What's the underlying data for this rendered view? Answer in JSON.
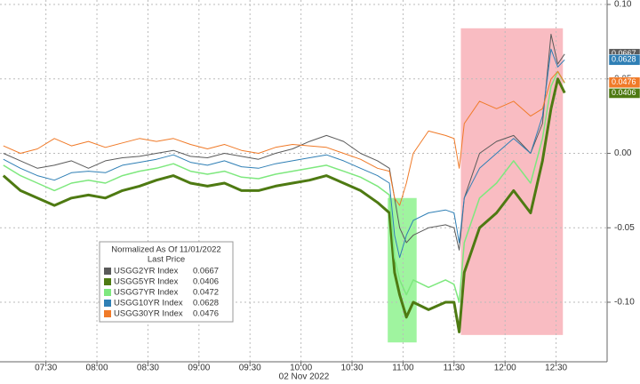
{
  "chart_data": {
    "type": "line",
    "x_label": "02 Nov 2022",
    "legend_title": "Normalized As Of 11/01/2022",
    "legend_subtitle": "Last Price",
    "x": [
      "07:05",
      "07:15",
      "07:25",
      "07:35",
      "07:45",
      "07:55",
      "08:05",
      "08:15",
      "08:25",
      "08:35",
      "08:45",
      "08:55",
      "09:05",
      "09:15",
      "09:25",
      "09:35",
      "09:45",
      "09:55",
      "10:05",
      "10:15",
      "10:25",
      "10:35",
      "10:45",
      "10:52",
      "10:55",
      "10:58",
      "11:02",
      "11:06",
      "11:15",
      "11:25",
      "11:30",
      "11:33",
      "11:36",
      "11:45",
      "11:55",
      "12:05",
      "12:15",
      "12:22",
      "12:27",
      "12:31",
      "12:35"
    ],
    "series": [
      {
        "name": "USGG2YR Index",
        "color": "#5a5a5a",
        "last": 0.0667,
        "width": 1,
        "values": [
          0,
          -0.005,
          -0.01,
          -0.008,
          -0.005,
          -0.01,
          -0.005,
          -0.003,
          -0.002,
          0,
          0.002,
          -0.002,
          -0.003,
          0,
          -0.002,
          -0.004,
          0,
          0.003,
          0.008,
          0.012,
          0.008,
          0,
          -0.005,
          -0.01,
          -0.03,
          -0.05,
          -0.06,
          -0.055,
          -0.05,
          -0.048,
          -0.05,
          -0.065,
          -0.03,
          0,
          0.008,
          0.012,
          0,
          0.02,
          0.08,
          0.06,
          0.0667
        ]
      },
      {
        "name": "USGG5YR Index",
        "color": "#4e7a12",
        "last": 0.0406,
        "width": 3,
        "values": [
          -0.015,
          -0.025,
          -0.03,
          -0.035,
          -0.03,
          -0.028,
          -0.03,
          -0.025,
          -0.022,
          -0.018,
          -0.015,
          -0.02,
          -0.022,
          -0.02,
          -0.025,
          -0.025,
          -0.022,
          -0.02,
          -0.018,
          -0.015,
          -0.02,
          -0.025,
          -0.033,
          -0.04,
          -0.08,
          -0.095,
          -0.11,
          -0.1,
          -0.105,
          -0.1,
          -0.1,
          -0.12,
          -0.08,
          -0.05,
          -0.04,
          -0.025,
          -0.04,
          -0.005,
          0.03,
          0.05,
          0.0406
        ]
      },
      {
        "name": "USGG7YR Index",
        "color": "#7ee87e",
        "last": 0.0472,
        "width": 1.5,
        "values": [
          -0.008,
          -0.015,
          -0.02,
          -0.025,
          -0.02,
          -0.018,
          -0.02,
          -0.015,
          -0.012,
          -0.01,
          -0.007,
          -0.012,
          -0.014,
          -0.012,
          -0.016,
          -0.017,
          -0.014,
          -0.012,
          -0.01,
          -0.008,
          -0.012,
          -0.016,
          -0.022,
          -0.028,
          -0.07,
          -0.085,
          -0.095,
          -0.085,
          -0.09,
          -0.085,
          -0.088,
          -0.1,
          -0.06,
          -0.03,
          -0.02,
          -0.005,
          -0.02,
          0.01,
          0.045,
          0.055,
          0.0472
        ]
      },
      {
        "name": "USGG10YR Index",
        "color": "#2f7fb5",
        "last": 0.0628,
        "width": 1,
        "values": [
          -0.004,
          -0.01,
          -0.015,
          -0.018,
          -0.013,
          -0.012,
          -0.013,
          -0.008,
          -0.006,
          -0.004,
          -0.001,
          -0.006,
          -0.008,
          -0.005,
          -0.009,
          -0.01,
          -0.007,
          -0.005,
          -0.003,
          -0.001,
          -0.005,
          -0.01,
          -0.015,
          -0.02,
          -0.055,
          -0.07,
          -0.055,
          -0.045,
          -0.04,
          -0.038,
          -0.04,
          -0.06,
          -0.03,
          -0.01,
          0,
          0.01,
          0,
          0.025,
          0.07,
          0.058,
          0.0628
        ]
      },
      {
        "name": "USGG30YR Index",
        "color": "#f07a28",
        "last": 0.0476,
        "width": 1,
        "values": [
          0.005,
          0,
          0.003,
          0.01,
          0.005,
          0.008,
          0.004,
          0.007,
          0.01,
          0.008,
          0.01,
          0.006,
          0.003,
          0.006,
          0.002,
          0,
          0.004,
          0.006,
          0.005,
          0.004,
          0,
          -0.004,
          -0.01,
          -0.012,
          -0.03,
          -0.035,
          -0.02,
          0,
          0.015,
          0.012,
          0.01,
          -0.01,
          0.02,
          0.035,
          0.03,
          0.035,
          0.025,
          0.03,
          0.05,
          0.055,
          0.0476
        ]
      }
    ],
    "xlim": [
      "07:03",
      "13:00"
    ],
    "xticks": [
      "07:30",
      "08:00",
      "08:30",
      "09:00",
      "09:30",
      "10:00",
      "10:30",
      "11:00",
      "11:30",
      "12:00",
      "12:30"
    ],
    "ylim": [
      -0.14,
      0.103
    ],
    "yticks": [
      {
        "value": 0.1,
        "label": "0.10"
      },
      {
        "value": 0.05,
        "label": "0.05"
      },
      {
        "value": 0,
        "label": "0.00"
      },
      {
        "value": -0.05,
        "label": "-0.05"
      },
      {
        "value": -0.1,
        "label": "-0.10"
      }
    ],
    "grid": true,
    "highlight_regions": [
      {
        "x": [
          "10:51",
          "11:08"
        ],
        "y": [
          -0.03,
          -0.127
        ],
        "color": "#7ff07f"
      },
      {
        "x": [
          "11:34",
          "12:34"
        ],
        "y": [
          0.084,
          -0.122
        ],
        "color": "#f7a5ae"
      }
    ]
  }
}
